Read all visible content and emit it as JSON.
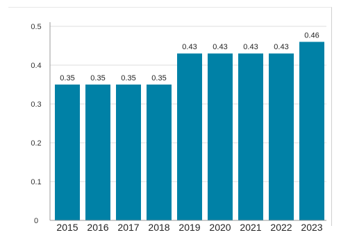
{
  "chart_data": {
    "type": "bar",
    "categories": [
      "2015",
      "2016",
      "2017",
      "2018",
      "2019",
      "2020",
      "2021",
      "2022",
      "2023"
    ],
    "values": [
      0.35,
      0.35,
      0.35,
      0.35,
      0.43,
      0.43,
      0.43,
      0.43,
      0.46
    ],
    "data_labels": [
      "0.35",
      "0.35",
      "0.35",
      "0.35",
      "0.43",
      "0.43",
      "0.43",
      "0.43",
      "0.46"
    ],
    "yticks": [
      0,
      0.1,
      0.2,
      0.3,
      0.4,
      0.5
    ],
    "ytick_labels": [
      "0",
      "0.1",
      "0.2",
      "0.3",
      "0.4",
      "0.5"
    ],
    "ylim": [
      0,
      0.5
    ],
    "grid": true,
    "title": "",
    "xlabel": "",
    "ylabel": "",
    "colors": {
      "bar": "#0081A6",
      "grid": "#dddddd",
      "axis": "#999999"
    }
  }
}
